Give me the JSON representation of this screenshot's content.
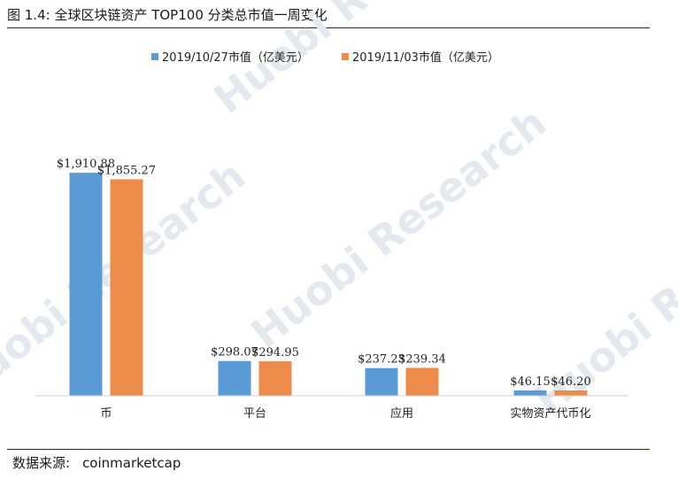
{
  "figure": {
    "title": "图 1.4:  全球区块链资产 TOP100 分类总市值一周变化",
    "source_label": "数据来源:",
    "source_value": "coinmarketcap",
    "watermark_text": "Huobi Research"
  },
  "chart_data": {
    "type": "bar",
    "title": "",
    "xlabel": "",
    "ylabel": "",
    "categories": [
      "币",
      "平台",
      "应用",
      "实物资产代币化"
    ],
    "series": [
      {
        "name": "2019/10/27市值（亿美元）",
        "color": "#5b9bd5",
        "values": [
          1910.88,
          298.07,
          237.23,
          46.15
        ],
        "labels": [
          "$1,910.88",
          "$298.07",
          "$237.23",
          "$46.15"
        ]
      },
      {
        "name": "2019/11/03市值（亿美元）",
        "color": "#ed8b4a",
        "values": [
          1855.27,
          294.95,
          239.34,
          46.2
        ],
        "labels": [
          "$1,855.27",
          "$294.95",
          "$239.34",
          "$46.20"
        ]
      }
    ],
    "ylim": [
      0,
      2200
    ],
    "grid": false,
    "legend": "top-center"
  }
}
